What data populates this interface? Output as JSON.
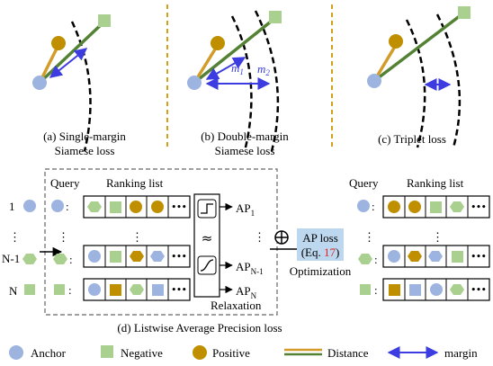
{
  "panels": {
    "a": {
      "caption_line1": "(a) Single-margin",
      "caption_line2": "Siamese loss"
    },
    "b": {
      "caption_line1": "(b) Double-margin",
      "caption_line2": "Siamese loss",
      "m1_main": "m",
      "m1_sub": "1",
      "m2_main": "m",
      "m2_sub": "2"
    },
    "c": {
      "caption": "(c) Triplet loss"
    }
  },
  "listwise": {
    "query_header": "Query",
    "ranking_header": "Ranking list",
    "row_labels": [
      "1",
      "N-1",
      "N"
    ],
    "ap_labels": [
      {
        "main": "AP",
        "sub": "1"
      },
      {
        "main": "AP",
        "sub": "N-1"
      },
      {
        "main": "AP",
        "sub": "N"
      }
    ],
    "approx_symbol": "≈",
    "relaxation_label": "Relaxation",
    "ap_loss_line1": "AP loss",
    "ap_loss_line2_prefix": "(Eq. ",
    "ap_loss_eq_ref": "17",
    "ap_loss_line2_suffix": ")",
    "optimization_label": "Optimization",
    "oplus_symbol": "⊕",
    "output_query_header": "Query",
    "output_ranking_header": "Ranking list",
    "caption": "(d) Listwise  Average Precision loss",
    "vertical_dots": "⋮",
    "ellipsis": "•••"
  },
  "legend": {
    "anchor": "Anchor",
    "negative": "Negative",
    "positive": "Positive",
    "distance": "Distance",
    "margin": "margin"
  },
  "colors": {
    "anchor": "#9db3e0",
    "negative": "#a9d08e",
    "positive": "#bf8f00",
    "distance_orange": "#d39c2a",
    "distance_green": "#548235",
    "margin_arrow": "#3c3ce0",
    "separator": "#d4a017",
    "eq_ref_red": "#e02020",
    "ap_box": "#bdd7ee"
  }
}
